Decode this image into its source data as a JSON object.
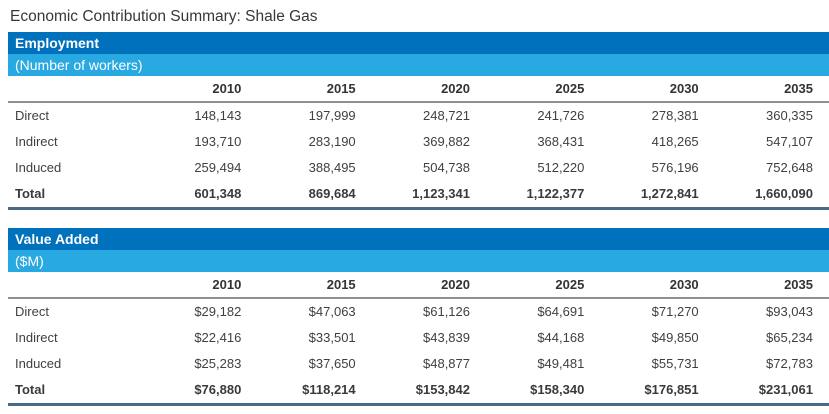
{
  "title": "Economic Contribution Summary: Shale Gas",
  "colors": {
    "header_dark_blue": "#0071BC",
    "header_light_blue": "#29A9E1",
    "rule_gray": "#8F8F8F",
    "rule_dark_blue": "#4A6B87",
    "text": "#404040"
  },
  "years": [
    "2010",
    "2015",
    "2020",
    "2025",
    "2030",
    "2035"
  ],
  "sections": [
    {
      "name": "Employment",
      "unit": "(Number of workers)",
      "rows": [
        {
          "label": "Direct",
          "bold": false,
          "values": [
            "148,143",
            "197,999",
            "248,721",
            "241,726",
            "278,381",
            "360,335"
          ]
        },
        {
          "label": "Indirect",
          "bold": false,
          "values": [
            "193,710",
            "283,190",
            "369,882",
            "368,431",
            "418,265",
            "547,107"
          ]
        },
        {
          "label": "Induced",
          "bold": false,
          "values": [
            "259,494",
            "388,495",
            "504,738",
            "512,220",
            "576,196",
            "752,648"
          ]
        },
        {
          "label": "Total",
          "bold": true,
          "values": [
            "601,348",
            "869,684",
            "1,123,341",
            "1,122,377",
            "1,272,841",
            "1,660,090"
          ]
        }
      ]
    },
    {
      "name": "Value Added",
      "unit": "($M)",
      "rows": [
        {
          "label": "Direct",
          "bold": false,
          "values": [
            "$29,182",
            "$47,063",
            "$61,126",
            "$64,691",
            "$71,270",
            "$93,043"
          ]
        },
        {
          "label": "Indirect",
          "bold": false,
          "values": [
            "$22,416",
            "$33,501",
            "$43,839",
            "$44,168",
            "$49,850",
            "$65,234"
          ]
        },
        {
          "label": "Induced",
          "bold": false,
          "values": [
            "$25,283",
            "$37,650",
            "$48,877",
            "$49,481",
            "$55,731",
            "$72,783"
          ]
        },
        {
          "label": "Total",
          "bold": true,
          "values": [
            "$76,880",
            "$118,214",
            "$153,842",
            "$158,340",
            "$176,851",
            "$231,061"
          ]
        }
      ]
    }
  ],
  "chart_data": [
    {
      "type": "table",
      "title": "Employment",
      "subtitle": "(Number of workers)",
      "columns": [
        "",
        "2010",
        "2015",
        "2020",
        "2025",
        "2030",
        "2035"
      ],
      "rows": [
        [
          "Direct",
          148143,
          197999,
          248721,
          241726,
          278381,
          360335
        ],
        [
          "Indirect",
          193710,
          283190,
          369882,
          368431,
          418265,
          547107
        ],
        [
          "Induced",
          259494,
          388495,
          504738,
          512220,
          576196,
          752648
        ],
        [
          "Total",
          601348,
          869684,
          1123341,
          1122377,
          1272841,
          1660090
        ]
      ]
    },
    {
      "type": "table",
      "title": "Value Added",
      "subtitle": "($M)",
      "columns": [
        "",
        "2010",
        "2015",
        "2020",
        "2025",
        "2030",
        "2035"
      ],
      "rows": [
        [
          "Direct",
          29182,
          47063,
          61126,
          64691,
          71270,
          93043
        ],
        [
          "Indirect",
          22416,
          33501,
          43839,
          44168,
          49850,
          65234
        ],
        [
          "Induced",
          25283,
          37650,
          48877,
          49481,
          55731,
          72783
        ],
        [
          "Total",
          76880,
          118214,
          153842,
          158340,
          176851,
          231061
        ]
      ]
    }
  ]
}
